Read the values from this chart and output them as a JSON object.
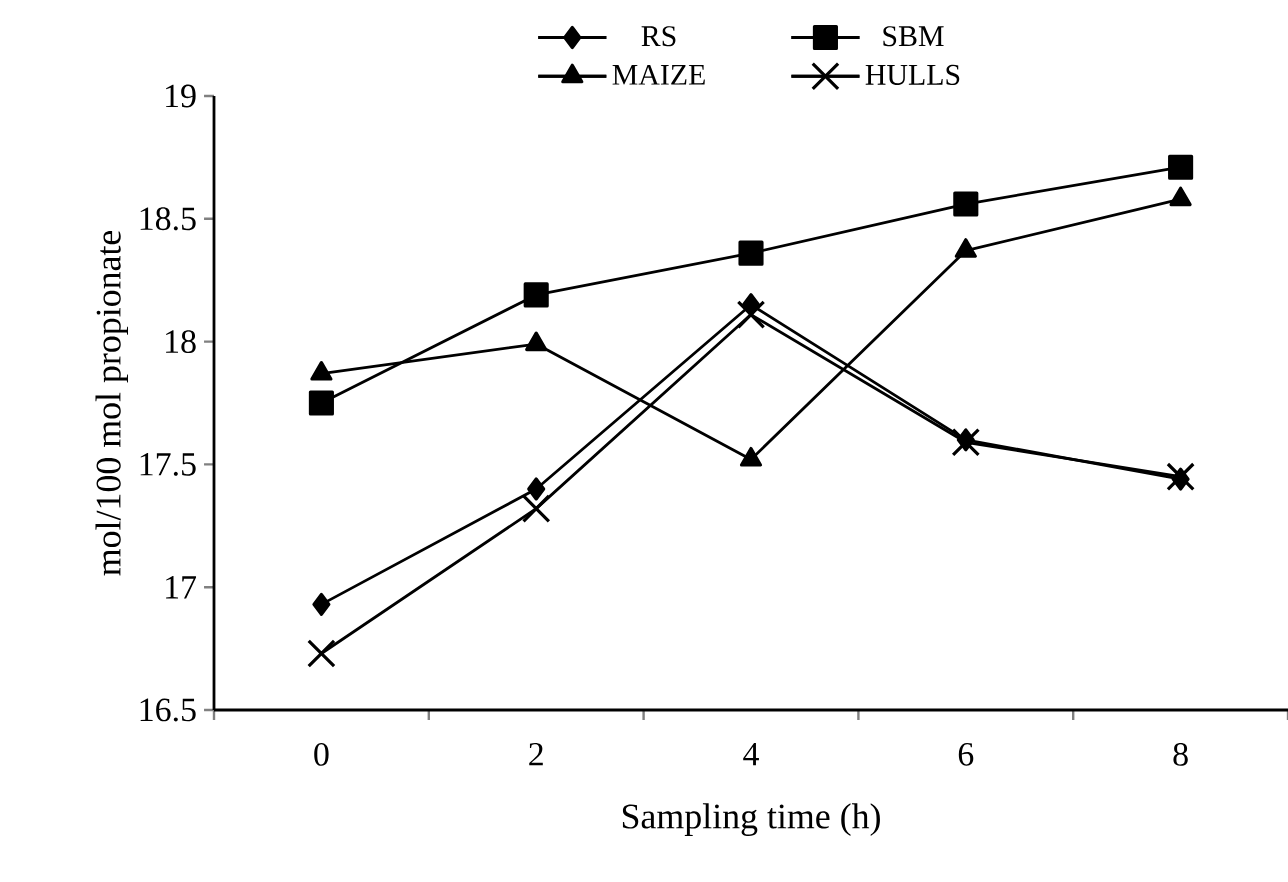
{
  "chart_data": {
    "type": "line",
    "xlabel": "Sampling time (h)",
    "ylabel": "mol/100 mol propionate",
    "categories": [
      "0",
      "2",
      "4",
      "6",
      "8"
    ],
    "series": [
      {
        "name": "RS",
        "color": "#000000",
        "marker": "diamond",
        "values": [
          16.93,
          17.4,
          18.15,
          17.6,
          17.44
        ]
      },
      {
        "name": "SBM",
        "color": "#000000",
        "marker": "square",
        "values": [
          17.75,
          18.19,
          18.36,
          18.56,
          18.71
        ]
      },
      {
        "name": "MAIZE",
        "color": "#000000",
        "marker": "triangle",
        "values": [
          17.87,
          17.99,
          17.52,
          18.37,
          18.58
        ]
      },
      {
        "name": "HULLS",
        "color": "#000000",
        "marker": "cross",
        "values": [
          16.73,
          17.32,
          18.11,
          17.59,
          17.45
        ]
      }
    ],
    "ylim": [
      16.5,
      19
    ],
    "yticks": [
      16.5,
      17,
      17.5,
      18,
      18.5,
      19
    ],
    "grid": false,
    "legend": "top"
  }
}
